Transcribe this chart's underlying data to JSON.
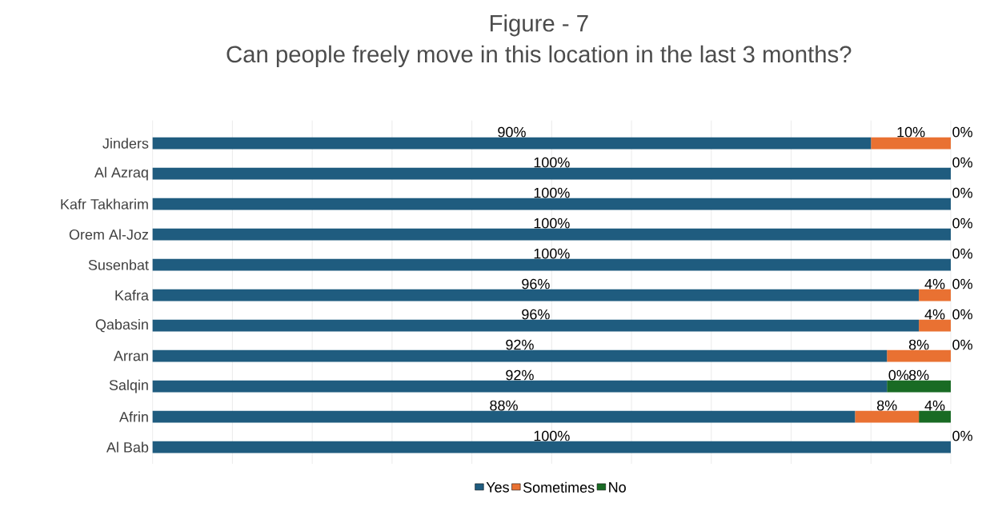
{
  "chart_data": {
    "type": "bar",
    "orientation": "horizontal",
    "stacked": true,
    "title": "Figure - 7",
    "subtitle": "Can people freely move in this location in the last 3 months?",
    "categories": [
      "Jinders",
      "Al Azraq",
      "Kafr Takharim",
      "Orem Al-Joz",
      "Susenbat",
      "Kafra",
      "Qabasin",
      "Arran",
      "Salqin",
      "Afrin",
      "Al Bab"
    ],
    "series": [
      {
        "name": "Yes",
        "color": "#1f5c7f",
        "values": [
          90,
          100,
          100,
          100,
          100,
          96,
          96,
          92,
          92,
          88,
          100
        ],
        "value_labels": [
          "90%",
          "100%",
          "100%",
          "100%",
          "100%",
          "96%",
          "96%",
          "92%",
          "92%",
          "88%",
          "100%"
        ]
      },
      {
        "name": "Sometimes",
        "color": "#e97132",
        "values": [
          10,
          0,
          0,
          0,
          0,
          4,
          4,
          8,
          0,
          8,
          0
        ],
        "value_labels": [
          "10%",
          null,
          null,
          null,
          null,
          "4%",
          "4%",
          "8%",
          "0%",
          "8%",
          null
        ]
      },
      {
        "name": "No",
        "color": "#196b24",
        "values": [
          0,
          0,
          0,
          0,
          0,
          0,
          0,
          0,
          8,
          4,
          0
        ],
        "value_labels": [
          "0%",
          "0%",
          "0%",
          "0%",
          "0%",
          "0%",
          "0%",
          "0%",
          "8%",
          "4%",
          "0%"
        ]
      }
    ],
    "xlim": [
      0,
      100
    ],
    "xticks": [
      {
        "value": 0,
        "label": null
      },
      {
        "value": 10,
        "label": null
      },
      {
        "value": 20,
        "label": null
      },
      {
        "value": 30,
        "label": null
      },
      {
        "value": 40,
        "label": null
      },
      {
        "value": 50,
        "label": null
      },
      {
        "value": 60,
        "label": null
      },
      {
        "value": 70,
        "label": null
      },
      {
        "value": 80,
        "label": null
      },
      {
        "value": 90,
        "label": null
      },
      {
        "value": 100,
        "label": null
      }
    ],
    "tick_labels": "y",
    "grid": "x",
    "legend": "bottom"
  }
}
